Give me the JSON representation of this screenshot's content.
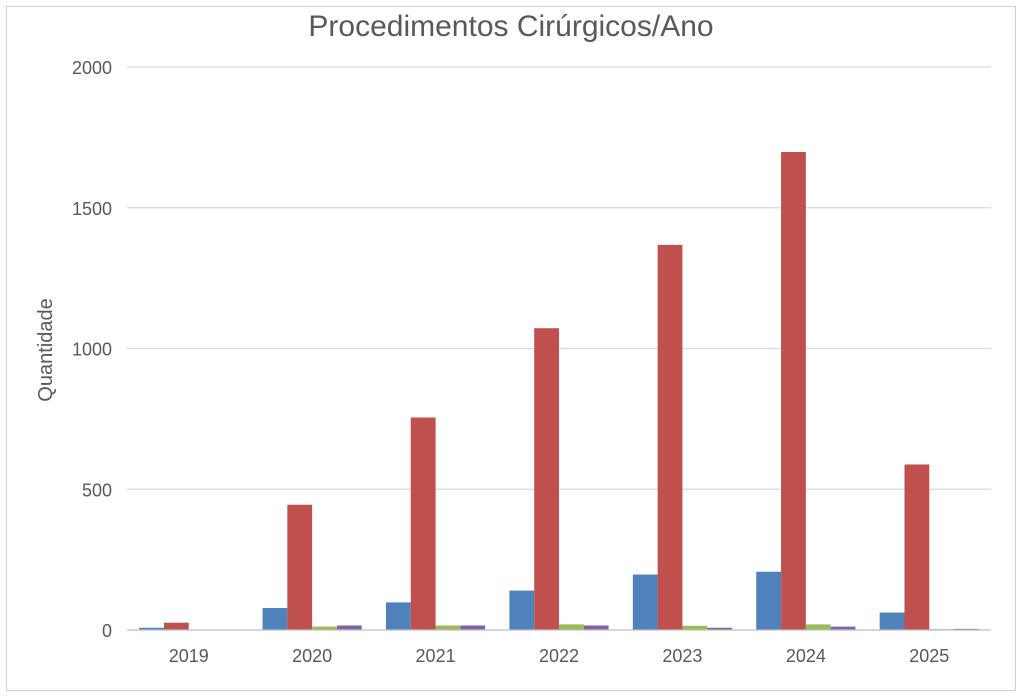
{
  "chart_data": {
    "type": "bar",
    "title": "Procedimentos Cirúrgicos/Ano",
    "xlabel": "",
    "ylabel": "Quantidade",
    "categories": [
      "2019",
      "2020",
      "2021",
      "2022",
      "2023",
      "2024",
      "2025"
    ],
    "ylim": [
      0,
      2000
    ],
    "yticks": [
      0,
      500,
      1000,
      1500,
      2000
    ],
    "grid": true,
    "series": [
      {
        "color": "#4f81bd",
        "values": [
          8,
          78,
          98,
          140,
          197,
          207,
          62
        ]
      },
      {
        "color": "#c0504d",
        "values": [
          26,
          445,
          755,
          1072,
          1368,
          1698,
          588
        ]
      },
      {
        "color": "#9bbb59",
        "values": [
          0,
          12,
          16,
          20,
          15,
          20,
          3
        ]
      },
      {
        "color": "#8064a2",
        "values": [
          0,
          16,
          16,
          16,
          8,
          12,
          4
        ]
      }
    ]
  }
}
